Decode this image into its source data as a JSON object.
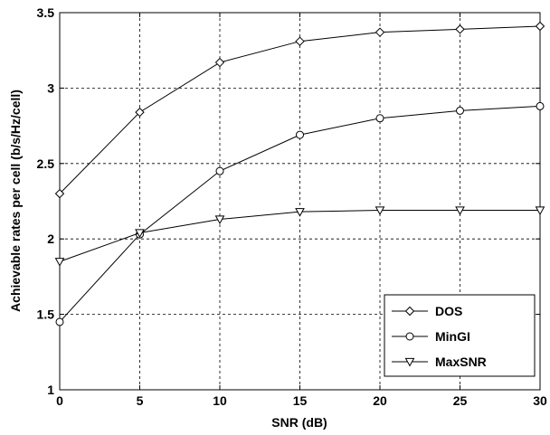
{
  "chart_data": {
    "type": "line",
    "title": "",
    "xlabel": "SNR (dB)",
    "ylabel": "Achievable rates per cell (b/s/Hz/cell)",
    "x": [
      0,
      5,
      10,
      15,
      20,
      25,
      30
    ],
    "xlim": [
      0,
      30
    ],
    "ylim": [
      1,
      3.5
    ],
    "xticks": [
      "0",
      "5",
      "10",
      "15",
      "20",
      "25",
      "30"
    ],
    "yticks": [
      "1",
      "1.5",
      "2",
      "2.5",
      "3",
      "3.5"
    ],
    "grid": true,
    "legend_position": "bottom-right",
    "series": [
      {
        "name": "DOS",
        "marker": "diamond",
        "color": "#000000",
        "values": [
          2.3,
          2.84,
          3.17,
          3.31,
          3.37,
          3.39,
          3.41
        ]
      },
      {
        "name": "MinGI",
        "marker": "circle",
        "color": "#000000",
        "values": [
          1.45,
          2.03,
          2.45,
          2.69,
          2.8,
          2.85,
          2.88
        ]
      },
      {
        "name": "MaxSNR",
        "marker": "triangle-down",
        "color": "#000000",
        "values": [
          1.85,
          2.04,
          2.13,
          2.18,
          2.19,
          2.19,
          2.19
        ]
      }
    ]
  }
}
